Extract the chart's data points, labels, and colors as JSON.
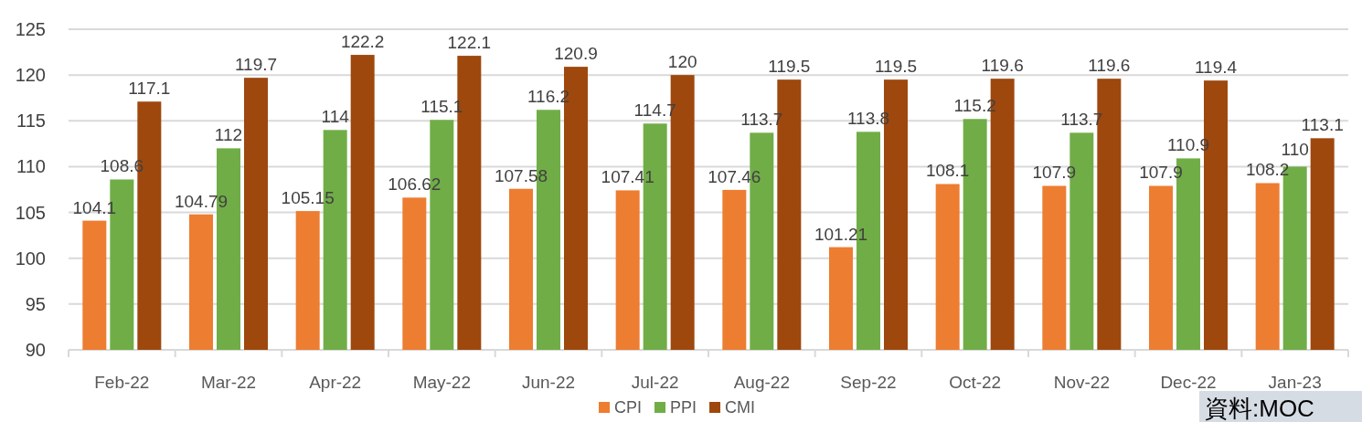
{
  "chart_data": {
    "type": "bar",
    "categories": [
      "Feb-22",
      "Mar-22",
      "Apr-22",
      "May-22",
      "Jun-22",
      "Jul-22",
      "Aug-22",
      "Sep-22",
      "Oct-22",
      "Nov-22",
      "Dec-22",
      "Jan-23"
    ],
    "series": [
      {
        "name": "CPI",
        "color": "#ed7d31",
        "values": [
          104.1,
          104.79,
          105.15,
          106.62,
          107.58,
          107.41,
          107.46,
          101.21,
          108.1,
          107.9,
          107.9,
          108.2
        ]
      },
      {
        "name": "PPI",
        "color": "#70ad47",
        "values": [
          108.6,
          112,
          114,
          115.1,
          116.2,
          114.7,
          113.7,
          113.8,
          115.2,
          113.7,
          110.9,
          110
        ]
      },
      {
        "name": "CMI",
        "color": "#9e480e",
        "values": [
          117.1,
          119.7,
          122.2,
          122.1,
          120.9,
          120,
          119.5,
          119.5,
          119.6,
          119.6,
          119.4,
          113.1
        ]
      }
    ],
    "ylim": [
      90,
      125
    ],
    "yticks": [
      90,
      95,
      100,
      105,
      110,
      115,
      120,
      125
    ],
    "grid": "y",
    "legend": "bottom",
    "data_labels": true,
    "annotations": [
      "資料:MOC"
    ]
  }
}
